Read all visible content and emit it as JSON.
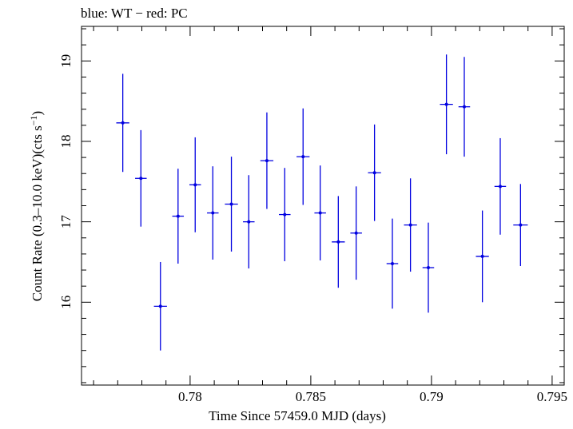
{
  "chart_data": {
    "type": "scatter",
    "title": "blue: WT − red: PC",
    "xlabel": "Time Since 57459.0 MJD (days)",
    "ylabel_main": "Count Rate (0.3–10.0 keV)(cts s",
    "ylabel_sup": "−1",
    "ylabel_close": ")",
    "xlim": [
      0.7755,
      0.7955
    ],
    "ylim": [
      14.97,
      19.43
    ],
    "xticks": [
      0.78,
      0.785,
      0.79,
      0.795
    ],
    "xtick_labels": [
      "0.78",
      "0.785",
      "0.79",
      "0.795"
    ],
    "yticks": [
      16,
      17,
      18,
      19
    ],
    "ytick_labels": [
      "16",
      "17",
      "18",
      "19"
    ],
    "grid": false,
    "series": [
      {
        "color": "#0000e0",
        "points": [
          {
            "x": 0.77721,
            "y": 18.23,
            "xerr": 0.00027,
            "yerr": 0.61
          },
          {
            "x": 0.77796,
            "y": 17.54,
            "xerr": 0.00024,
            "yerr": 0.6
          },
          {
            "x": 0.77877,
            "y": 15.95,
            "xerr": 0.00027,
            "yerr": 0.55
          },
          {
            "x": 0.7795,
            "y": 17.07,
            "xerr": 0.00024,
            "yerr": 0.59
          },
          {
            "x": 0.78021,
            "y": 17.46,
            "xerr": 0.00024,
            "yerr": 0.59
          },
          {
            "x": 0.78094,
            "y": 17.11,
            "xerr": 0.00024,
            "yerr": 0.58
          },
          {
            "x": 0.78171,
            "y": 17.22,
            "xerr": 0.00027,
            "yerr": 0.59
          },
          {
            "x": 0.78243,
            "y": 17.0,
            "xerr": 0.00024,
            "yerr": 0.58
          },
          {
            "x": 0.78318,
            "y": 17.76,
            "xerr": 0.00027,
            "yerr": 0.6
          },
          {
            "x": 0.78392,
            "y": 17.09,
            "xerr": 0.00024,
            "yerr": 0.58
          },
          {
            "x": 0.78468,
            "y": 17.81,
            "xerr": 0.00027,
            "yerr": 0.6
          },
          {
            "x": 0.78539,
            "y": 17.11,
            "xerr": 0.00024,
            "yerr": 0.59
          },
          {
            "x": 0.78614,
            "y": 16.75,
            "xerr": 0.00027,
            "yerr": 0.57
          },
          {
            "x": 0.78688,
            "y": 16.86,
            "xerr": 0.00024,
            "yerr": 0.58
          },
          {
            "x": 0.78764,
            "y": 17.61,
            "xerr": 0.00027,
            "yerr": 0.6
          },
          {
            "x": 0.78838,
            "y": 16.48,
            "xerr": 0.00024,
            "yerr": 0.56
          },
          {
            "x": 0.78913,
            "y": 16.96,
            "xerr": 0.00027,
            "yerr": 0.58
          },
          {
            "x": 0.78987,
            "y": 16.43,
            "xerr": 0.00024,
            "yerr": 0.56
          },
          {
            "x": 0.79062,
            "y": 18.46,
            "xerr": 0.00027,
            "yerr": 0.62
          },
          {
            "x": 0.79136,
            "y": 18.43,
            "xerr": 0.00024,
            "yerr": 0.62
          },
          {
            "x": 0.79211,
            "y": 16.57,
            "xerr": 0.00027,
            "yerr": 0.57
          },
          {
            "x": 0.79285,
            "y": 17.44,
            "xerr": 0.00024,
            "yerr": 0.6
          },
          {
            "x": 0.79369,
            "y": 16.96,
            "xerr": 0.0003,
            "yerr": 0.51
          }
        ]
      }
    ]
  }
}
